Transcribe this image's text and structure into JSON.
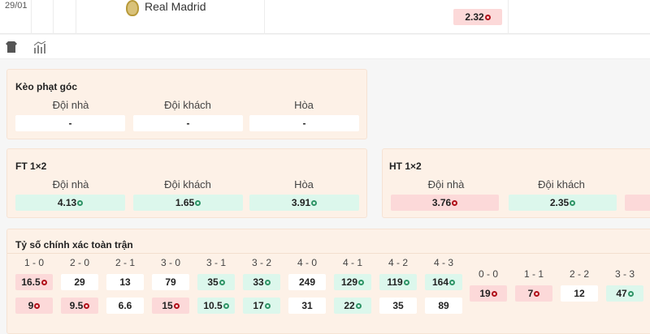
{
  "top": {
    "date": "29/01",
    "team": "Real Madrid",
    "odd": "2.32",
    "odd_trend": "down"
  },
  "toolbar": {
    "icons": [
      "shirt-icon",
      "stats-icon"
    ]
  },
  "corner": {
    "title": "Kèo phạt góc",
    "labels": [
      "Đội nhà",
      "Đội khách",
      "Hòa"
    ],
    "values": [
      "-",
      "-",
      "-"
    ]
  },
  "ft": {
    "title": "FT 1×2",
    "labels": [
      "Đội nhà",
      "Đội khách",
      "Hòa"
    ],
    "values": [
      {
        "v": "4.13",
        "c": "up"
      },
      {
        "v": "1.65",
        "c": "up"
      },
      {
        "v": "3.91",
        "c": "up"
      }
    ]
  },
  "ht": {
    "title": "HT 1×2",
    "labels": [
      "Đội nhà",
      "Đội khách"
    ],
    "values": [
      {
        "v": "3.76",
        "c": "down"
      },
      {
        "v": "2.35",
        "c": "up"
      }
    ]
  },
  "score": {
    "title": "Tỷ số chính xác toàn trận",
    "home": [
      {
        "s": "1 - 0",
        "a": {
          "v": "16.5",
          "c": "down"
        },
        "b": {
          "v": "9",
          "c": "down"
        }
      },
      {
        "s": "2 - 0",
        "a": {
          "v": "29",
          "c": ""
        },
        "b": {
          "v": "9.5",
          "c": "down"
        }
      },
      {
        "s": "2 - 1",
        "a": {
          "v": "13",
          "c": ""
        },
        "b": {
          "v": "6.6",
          "c": ""
        }
      },
      {
        "s": "3 - 0",
        "a": {
          "v": "79",
          "c": ""
        },
        "b": {
          "v": "15",
          "c": "down"
        }
      },
      {
        "s": "3 - 1",
        "a": {
          "v": "35",
          "c": "up"
        },
        "b": {
          "v": "10.5",
          "c": "up"
        }
      },
      {
        "s": "3 - 2",
        "a": {
          "v": "33",
          "c": "up"
        },
        "b": {
          "v": "17",
          "c": "up"
        }
      },
      {
        "s": "4 - 0",
        "a": {
          "v": "249",
          "c": ""
        },
        "b": {
          "v": "31",
          "c": ""
        }
      },
      {
        "s": "4 - 1",
        "a": {
          "v": "129",
          "c": "up"
        },
        "b": {
          "v": "22",
          "c": "up"
        }
      },
      {
        "s": "4 - 2",
        "a": {
          "v": "119",
          "c": "up"
        },
        "b": {
          "v": "35",
          "c": ""
        }
      },
      {
        "s": "4 - 3",
        "a": {
          "v": "164",
          "c": "up"
        },
        "b": {
          "v": "89",
          "c": ""
        }
      }
    ],
    "draw": [
      {
        "s": "0 - 0",
        "a": {
          "v": "19",
          "c": "down"
        }
      },
      {
        "s": "1 - 1",
        "a": {
          "v": "7",
          "c": "down"
        }
      },
      {
        "s": "2 - 2",
        "a": {
          "v": "12",
          "c": ""
        }
      },
      {
        "s": "3 - 3",
        "a": {
          "v": "47",
          "c": "up"
        }
      }
    ]
  },
  "colors": {
    "panel": "#fdf1e7",
    "up": "#dcf7ec",
    "down": "#fcd9d9"
  }
}
